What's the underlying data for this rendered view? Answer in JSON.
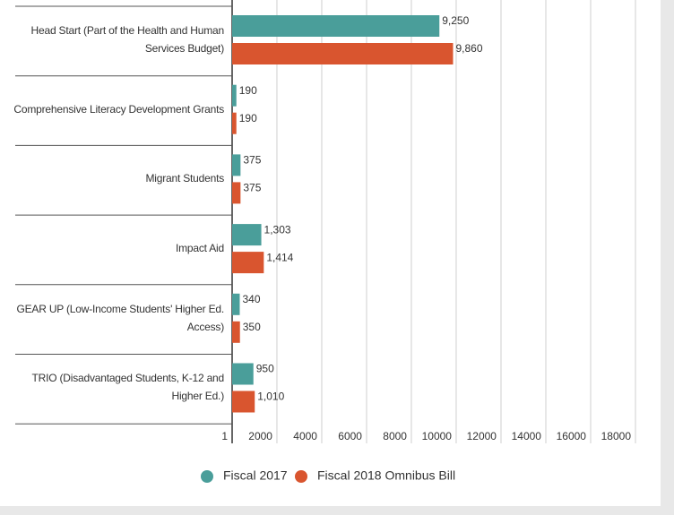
{
  "chart_data": {
    "type": "bar",
    "orientation": "horizontal",
    "categories": [
      "Head Start (Part of the Health and Human Services Budget)",
      "Comprehensive Literacy Development Grants",
      "Migrant Students",
      "Impact Aid",
      "GEAR UP (Low-Income Students' Higher Ed. Access)",
      "TRIO (Disadvantaged Students, K-12 and Higher Ed.)"
    ],
    "series": [
      {
        "name": "Fiscal 2017",
        "color": "#4a9e9a",
        "values": [
          9250,
          190,
          375,
          1303,
          340,
          950
        ],
        "value_labels": [
          "9,250",
          "190",
          "375",
          "1,303",
          "340",
          "950"
        ]
      },
      {
        "name": "Fiscal 2018 Omnibus Bill",
        "color": "#d9552f",
        "values": [
          9860,
          190,
          375,
          1414,
          350,
          1010
        ],
        "value_labels": [
          "9,860",
          "190",
          "375",
          "1,414",
          "350",
          "1,010"
        ]
      }
    ],
    "xlim": [
      1,
      18000
    ],
    "xticks": [
      1,
      2000,
      4000,
      6000,
      8000,
      10000,
      12000,
      14000,
      16000,
      18000
    ],
    "grid": true,
    "legend": "bottom"
  }
}
